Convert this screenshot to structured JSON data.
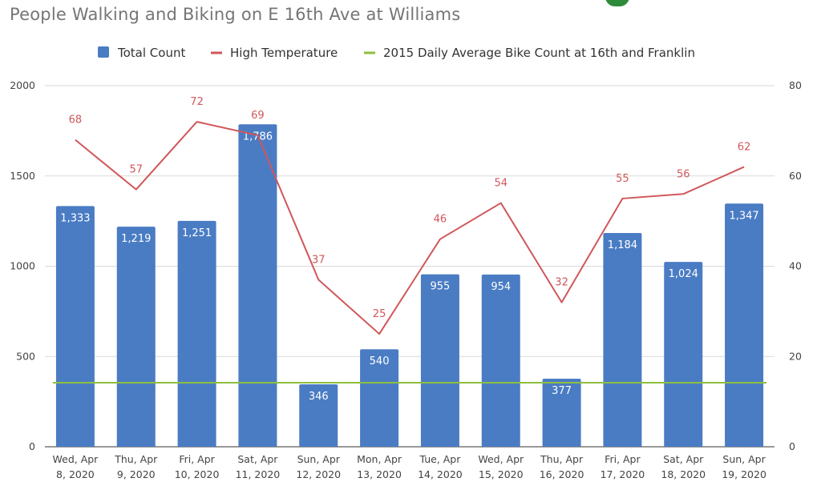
{
  "chart_data": {
    "type": "bar",
    "title": "People Walking and Biking on E 16th Ave at Williams",
    "categories": [
      [
        "Wed, Apr",
        "8, 2020"
      ],
      [
        "Thu, Apr",
        "9, 2020"
      ],
      [
        "Fri, Apr",
        "10, 2020"
      ],
      [
        "Sat, Apr",
        "11, 2020"
      ],
      [
        "Sun, Apr",
        "12, 2020"
      ],
      [
        "Mon, Apr",
        "13, 2020"
      ],
      [
        "Tue, Apr",
        "14, 2020"
      ],
      [
        "Wed, Apr",
        "15, 2020"
      ],
      [
        "Thu, Apr",
        "16, 2020"
      ],
      [
        "Fri, Apr",
        "17, 2020"
      ],
      [
        "Sat, Apr",
        "18, 2020"
      ],
      [
        "Sun, Apr",
        "19, 2020"
      ]
    ],
    "series": [
      {
        "name": "Total Count",
        "type": "bar",
        "axis": "left",
        "color": "#4a7cc4",
        "values": [
          1333,
          1219,
          1251,
          1786,
          346,
          540,
          955,
          954,
          377,
          1184,
          1024,
          1347
        ],
        "labels": [
          "1,333",
          "1,219",
          "1,251",
          "1,786",
          "346",
          "540",
          "955",
          "954",
          "377",
          "1,184",
          "1,024",
          "1,347"
        ]
      },
      {
        "name": "High Temperature",
        "type": "line",
        "axis": "right",
        "color": "#d0575b",
        "values": [
          68,
          57,
          72,
          69,
          37,
          25,
          46,
          54,
          32,
          55,
          56,
          62
        ],
        "labels": [
          "68",
          "57",
          "72",
          "69",
          "37",
          "25",
          "46",
          "54",
          "32",
          "55",
          "56",
          "62"
        ]
      },
      {
        "name": "2015 Daily Average Bike Count at 16th and Franklin",
        "type": "line",
        "axis": "left",
        "color": "#8dbf3f",
        "values": [
          355,
          355,
          355,
          355,
          355,
          355,
          355,
          355,
          355,
          355,
          355,
          355
        ]
      }
    ],
    "y_left": {
      "min": 0,
      "max": 2000,
      "ticks": [
        "0",
        "500",
        "1000",
        "1500",
        "2000"
      ]
    },
    "y_right": {
      "min": 0,
      "max": 80,
      "ticks": [
        "0",
        "20",
        "40",
        "60",
        "80"
      ]
    },
    "grid": true,
    "legend": "top"
  }
}
